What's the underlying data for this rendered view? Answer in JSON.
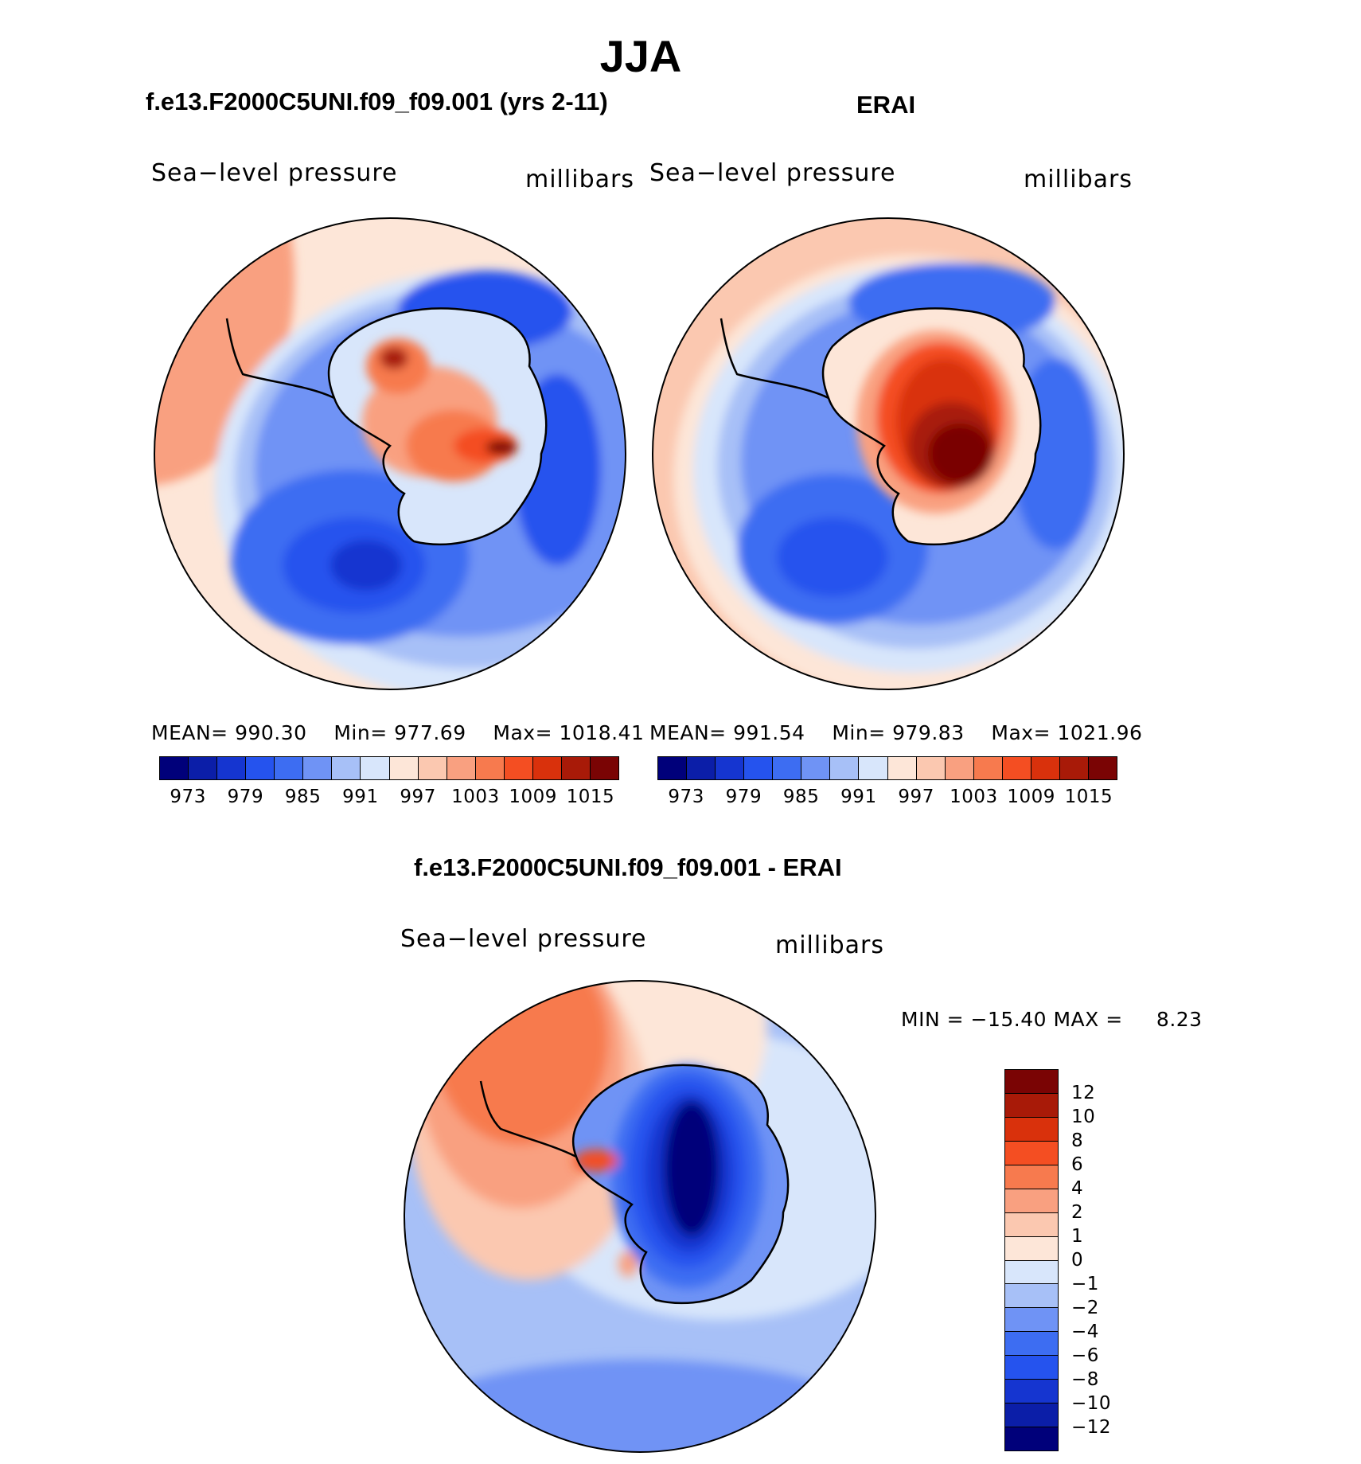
{
  "title": "JJA",
  "chart_data": [
    {
      "type": "heatmap",
      "title": "f.e13.F2000C5UNI.f09_f09.001 (yrs 2-11)",
      "variable": "Sea−level pressure",
      "units": "millibars",
      "projection": "south-polar-stereographic",
      "stats": {
        "mean_label": "MEAN=",
        "mean": "990.30",
        "min_label": "Min=",
        "min": "977.69",
        "max_label": "Max=",
        "max": "1018.41"
      },
      "colorbar_ticks": [
        "973",
        "979",
        "985",
        "991",
        "997",
        "1003",
        "1009",
        "1015"
      ],
      "levels": [
        973,
        976,
        979,
        982,
        985,
        988,
        991,
        994,
        997,
        1000,
        1003,
        1006,
        1009,
        1012,
        1015
      ],
      "colors": [
        "#00007a",
        "#0b1ea8",
        "#1535d0",
        "#2553ee",
        "#3d6df2",
        "#6f93f5",
        "#a7c0f7",
        "#d8e6fb",
        "#fde6d8",
        "#fbc8b0",
        "#f9a080",
        "#f77a4e",
        "#f44e22",
        "#d9310c",
        "#a81a08",
        "#7a0404"
      ],
      "region_levels": {
        "outer_ring": 1000,
        "low_center": 976,
        "antarctica_high": 1013
      }
    },
    {
      "type": "heatmap",
      "title": "ERAI",
      "variable": "Sea−level pressure",
      "units": "millibars",
      "projection": "south-polar-stereographic",
      "stats": {
        "mean_label": "MEAN=",
        "mean": "991.54",
        "min_label": "Min=",
        "min": "979.83",
        "max_label": "Max=",
        "max": "1021.96"
      },
      "colorbar_ticks": [
        "973",
        "979",
        "985",
        "991",
        "997",
        "1003",
        "1009",
        "1015"
      ],
      "levels": [
        973,
        976,
        979,
        982,
        985,
        988,
        991,
        994,
        997,
        1000,
        1003,
        1006,
        1009,
        1012,
        1015
      ],
      "colors": [
        "#00007a",
        "#0b1ea8",
        "#1535d0",
        "#2553ee",
        "#3d6df2",
        "#6f93f5",
        "#a7c0f7",
        "#d8e6fb",
        "#fde6d8",
        "#fbc8b0",
        "#f9a080",
        "#f77a4e",
        "#f44e22",
        "#d9310c",
        "#a81a08",
        "#7a0404"
      ],
      "region_levels": {
        "outer_ring": 1000,
        "low_center": 979,
        "antarctica_high": 1016
      }
    },
    {
      "type": "heatmap",
      "title": "f.e13.F2000C5UNI.f09_f09.001 - ERAI",
      "variable": "Sea−level pressure",
      "units": "millibars",
      "projection": "south-polar-stereographic",
      "stats": {
        "min_label": "MIN =",
        "min": "−15.40",
        "max_label": "MAX =",
        "max": "8.23"
      },
      "colorbar_ticks": [
        "12",
        "10",
        "8",
        "6",
        "4",
        "2",
        "1",
        "0",
        "−1",
        "−2",
        "−4",
        "−6",
        "−8",
        "−10",
        "−12"
      ],
      "levels": [
        -12,
        -10,
        -8,
        -6,
        -4,
        -2,
        -1,
        0,
        1,
        2,
        4,
        6,
        8,
        10,
        12
      ],
      "colors": [
        "#7a0404",
        "#a81a08",
        "#d9310c",
        "#f44e22",
        "#f77a4e",
        "#f9a080",
        "#fbc8b0",
        "#fde6d8",
        "#d8e6fb",
        "#a7c0f7",
        "#6f93f5",
        "#3d6df2",
        "#2553ee",
        "#1535d0",
        "#0b1ea8",
        "#00007a"
      ],
      "region_levels": {
        "pacific_positive": 3,
        "antarctica_negative": -13,
        "ocean_negative": -1.5
      }
    }
  ]
}
